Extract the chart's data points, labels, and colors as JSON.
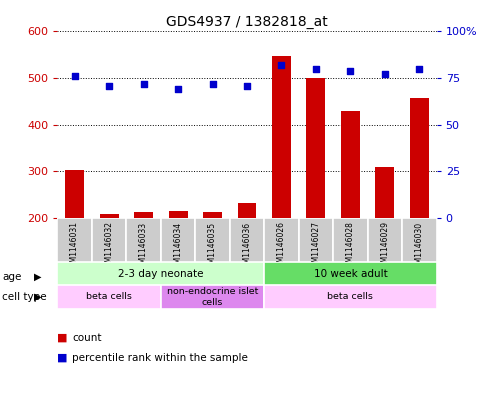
{
  "title": "GDS4937 / 1382818_at",
  "samples": [
    "GSM1146031",
    "GSM1146032",
    "GSM1146033",
    "GSM1146034",
    "GSM1146035",
    "GSM1146036",
    "GSM1146026",
    "GSM1146027",
    "GSM1146028",
    "GSM1146029",
    "GSM1146030"
  ],
  "counts": [
    302,
    208,
    212,
    215,
    213,
    232,
    548,
    500,
    430,
    310,
    458
  ],
  "percentiles": [
    76,
    71,
    72,
    69,
    72,
    71,
    82,
    80,
    79,
    77,
    80
  ],
  "ylim_left": [
    200,
    600
  ],
  "ylim_right": [
    0,
    100
  ],
  "yticks_left": [
    200,
    300,
    400,
    500,
    600
  ],
  "yticks_right": [
    0,
    25,
    50,
    75,
    100
  ],
  "bar_color": "#cc0000",
  "scatter_color": "#0000cc",
  "age_groups": [
    {
      "label": "2-3 day neonate",
      "start": 0,
      "end": 6,
      "color": "#ccffcc"
    },
    {
      "label": "10 week adult",
      "start": 6,
      "end": 11,
      "color": "#66dd66"
    }
  ],
  "cell_type_groups": [
    {
      "label": "beta cells",
      "start": 0,
      "end": 3,
      "color": "#ffccff"
    },
    {
      "label": "non-endocrine islet\ncells",
      "start": 3,
      "end": 6,
      "color": "#dd88ee"
    },
    {
      "label": "beta cells",
      "start": 6,
      "end": 11,
      "color": "#ffccff"
    }
  ],
  "age_label": "age",
  "cell_type_label": "cell type",
  "legend_count_label": "count",
  "legend_percentile_label": "percentile rank within the sample",
  "background_color": "#ffffff",
  "left_tick_color": "#cc0000",
  "right_tick_color": "#0000cc"
}
